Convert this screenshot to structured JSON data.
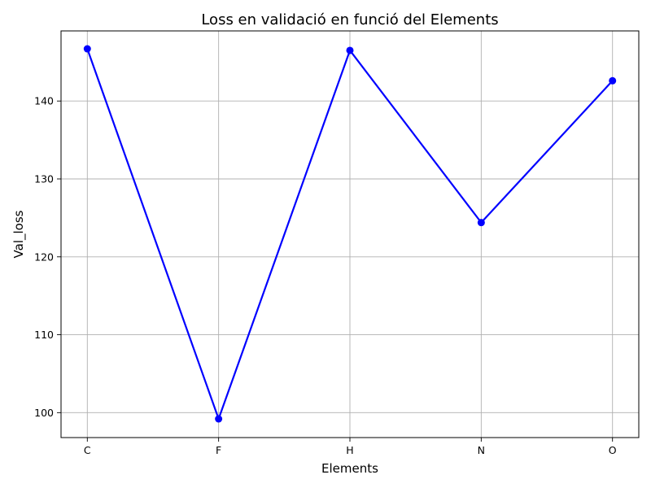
{
  "chart_data": {
    "type": "line",
    "title": "Loss en validació en funció del Elements",
    "xlabel": "Elements",
    "ylabel": "Val_loss",
    "categories": [
      "C",
      "F",
      "H",
      "N",
      "O"
    ],
    "series": [
      {
        "values": [
          146.7,
          99.2,
          146.5,
          124.4,
          142.6
        ],
        "color": "#0000ff",
        "marker": "circle"
      }
    ],
    "ylim": [
      96.8,
      149.0
    ],
    "yticks": [
      100,
      110,
      120,
      130,
      140
    ],
    "grid": true
  }
}
